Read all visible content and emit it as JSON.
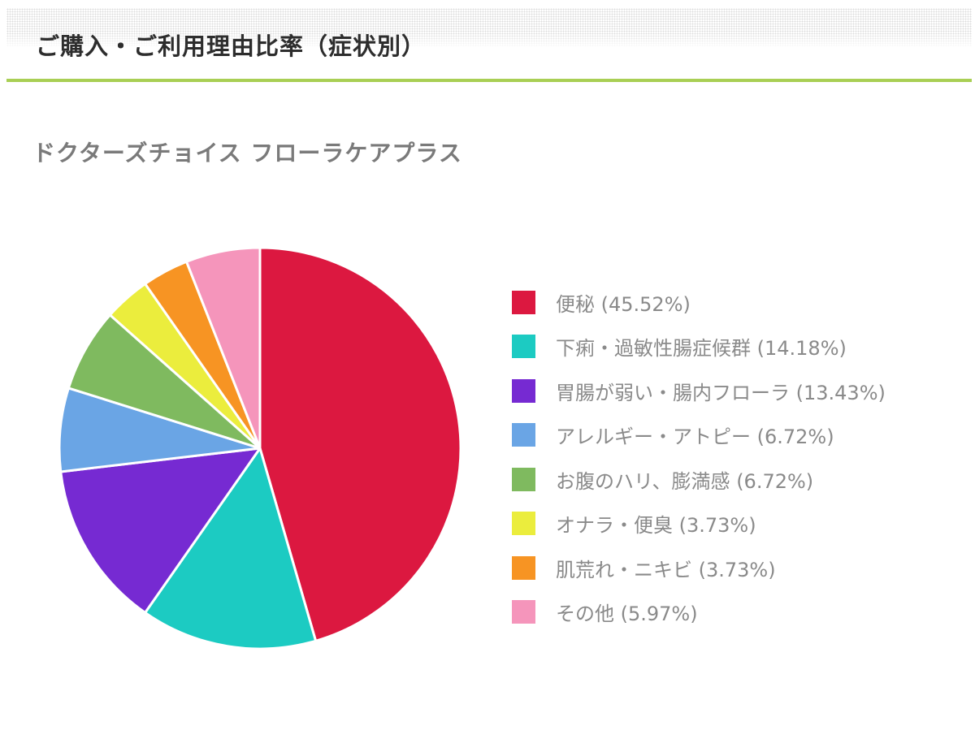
{
  "header": {
    "title": "ご購入・ご利用理由比率（症状別）"
  },
  "chart_title": "ドクターズチョイス フローラケアプラス",
  "legend": [
    {
      "label": "便秘 (45.52%)",
      "color": "#dc1840"
    },
    {
      "label": "下痢・過敏性腸症候群 (14.18%)",
      "color": "#1ccbc2"
    },
    {
      "label": "胃腸が弱い・腸内フローラ (13.43%)",
      "color": "#762ad2"
    },
    {
      "label": "アレルギー・アトピー (6.72%)",
      "color": "#6aa5e5"
    },
    {
      "label": "お腹のハリ、膨満感 (6.72%)",
      "color": "#7fba5f"
    },
    {
      "label": "オナラ・便臭 (3.73%)",
      "color": "#ebed3d"
    },
    {
      "label": "肌荒れ・ニキビ (3.73%)",
      "color": "#f79423"
    },
    {
      "label": "その他 (5.97%)",
      "color": "#f595bb"
    }
  ],
  "chart_data": {
    "type": "pie",
    "title": "ドクターズチョイス フローラケアプラス",
    "categories": [
      "便秘",
      "下痢・過敏性腸症候群",
      "胃腸が弱い・腸内フローラ",
      "アレルギー・アトピー",
      "お腹のハリ、膨満感",
      "オナラ・便臭",
      "肌荒れ・ニキビ",
      "その他"
    ],
    "values": [
      45.52,
      14.18,
      13.43,
      6.72,
      6.72,
      3.73,
      3.73,
      5.97
    ],
    "colors": [
      "#dc1840",
      "#1ccbc2",
      "#762ad2",
      "#6aa5e5",
      "#7fba5f",
      "#ebed3d",
      "#f79423",
      "#f595bb"
    ],
    "start_angle": "12 o'clock",
    "direction": "clockwise",
    "legend_position": "right",
    "units": "%"
  }
}
